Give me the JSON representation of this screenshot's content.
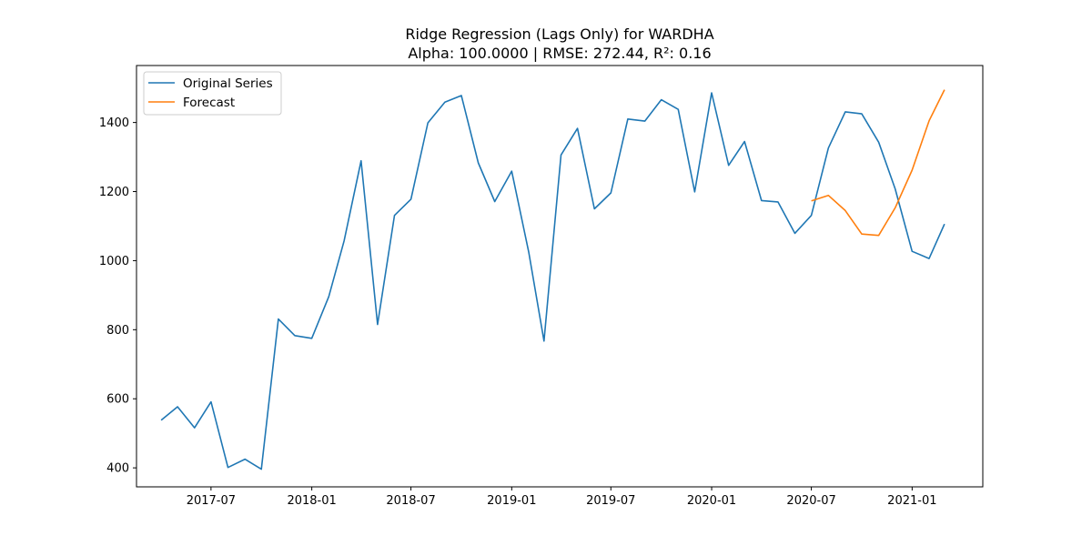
{
  "chart_data": {
    "type": "line",
    "title": "Ridge Regression (Lags Only) for WARDHA",
    "subtitle": "Alpha: 100.0000 | RMSE: 272.44, R²: 0.16",
    "xlabel": "",
    "ylabel": "",
    "x_range": [
      "2017-02-15",
      "2021-05-10"
    ],
    "ylim": [
      345,
      1565
    ],
    "x_ticks": [
      {
        "date": "2017-07-01",
        "label": "2017-07"
      },
      {
        "date": "2018-01-01",
        "label": "2018-01"
      },
      {
        "date": "2018-07-01",
        "label": "2018-07"
      },
      {
        "date": "2019-01-01",
        "label": "2019-01"
      },
      {
        "date": "2019-07-01",
        "label": "2019-07"
      },
      {
        "date": "2020-01-01",
        "label": "2020-01"
      },
      {
        "date": "2020-07-01",
        "label": "2020-07"
      },
      {
        "date": "2021-01-01",
        "label": "2021-01"
      }
    ],
    "y_ticks": [
      400,
      600,
      800,
      1000,
      1200,
      1400
    ],
    "grid": false,
    "legend_position": "top-left",
    "series": [
      {
        "name": "Original Series",
        "color": "#1f77b4",
        "points": [
          [
            "2017-04-01",
            538
          ],
          [
            "2017-05-01",
            577
          ],
          [
            "2017-06-01",
            516
          ],
          [
            "2017-07-01",
            591
          ],
          [
            "2017-08-01",
            401
          ],
          [
            "2017-09-01",
            425
          ],
          [
            "2017-10-01",
            396
          ],
          [
            "2017-11-01",
            831
          ],
          [
            "2017-12-01",
            783
          ],
          [
            "2018-01-01",
            775
          ],
          [
            "2018-02-01",
            896
          ],
          [
            "2018-03-01",
            1057
          ],
          [
            "2018-04-01",
            1289
          ],
          [
            "2018-05-01",
            815
          ],
          [
            "2018-06-01",
            1131
          ],
          [
            "2018-07-01",
            1178
          ],
          [
            "2018-08-01",
            1399
          ],
          [
            "2018-09-01",
            1459
          ],
          [
            "2018-10-01",
            1478
          ],
          [
            "2018-11-01",
            1283
          ],
          [
            "2018-12-01",
            1171
          ],
          [
            "2019-01-01",
            1259
          ],
          [
            "2019-02-01",
            1025
          ],
          [
            "2019-03-01",
            767
          ],
          [
            "2019-04-01",
            1306
          ],
          [
            "2019-05-01",
            1383
          ],
          [
            "2019-06-01",
            1150
          ],
          [
            "2019-07-01",
            1196
          ],
          [
            "2019-08-01",
            1410
          ],
          [
            "2019-09-01",
            1404
          ],
          [
            "2019-10-01",
            1466
          ],
          [
            "2019-11-01",
            1438
          ],
          [
            "2019-12-01",
            1199
          ],
          [
            "2020-01-01",
            1486
          ],
          [
            "2020-02-01",
            1276
          ],
          [
            "2020-03-01",
            1345
          ],
          [
            "2020-04-01",
            1174
          ],
          [
            "2020-05-01",
            1170
          ],
          [
            "2020-06-01",
            1079
          ],
          [
            "2020-07-01",
            1131
          ],
          [
            "2020-08-01",
            1326
          ],
          [
            "2020-09-01",
            1431
          ],
          [
            "2020-10-01",
            1425
          ],
          [
            "2020-11-01",
            1343
          ],
          [
            "2020-12-01",
            1208
          ],
          [
            "2021-01-01",
            1027
          ],
          [
            "2021-02-01",
            1006
          ],
          [
            "2021-03-01",
            1106
          ]
        ]
      },
      {
        "name": "Forecast",
        "color": "#ff7f0e",
        "points": [
          [
            "2020-07-01",
            1173
          ],
          [
            "2020-08-01",
            1189
          ],
          [
            "2020-09-01",
            1145
          ],
          [
            "2020-10-01",
            1077
          ],
          [
            "2020-11-01",
            1073
          ],
          [
            "2020-12-01",
            1153
          ],
          [
            "2021-01-01",
            1262
          ],
          [
            "2021-02-01",
            1405
          ],
          [
            "2021-03-01",
            1495
          ]
        ]
      }
    ]
  }
}
